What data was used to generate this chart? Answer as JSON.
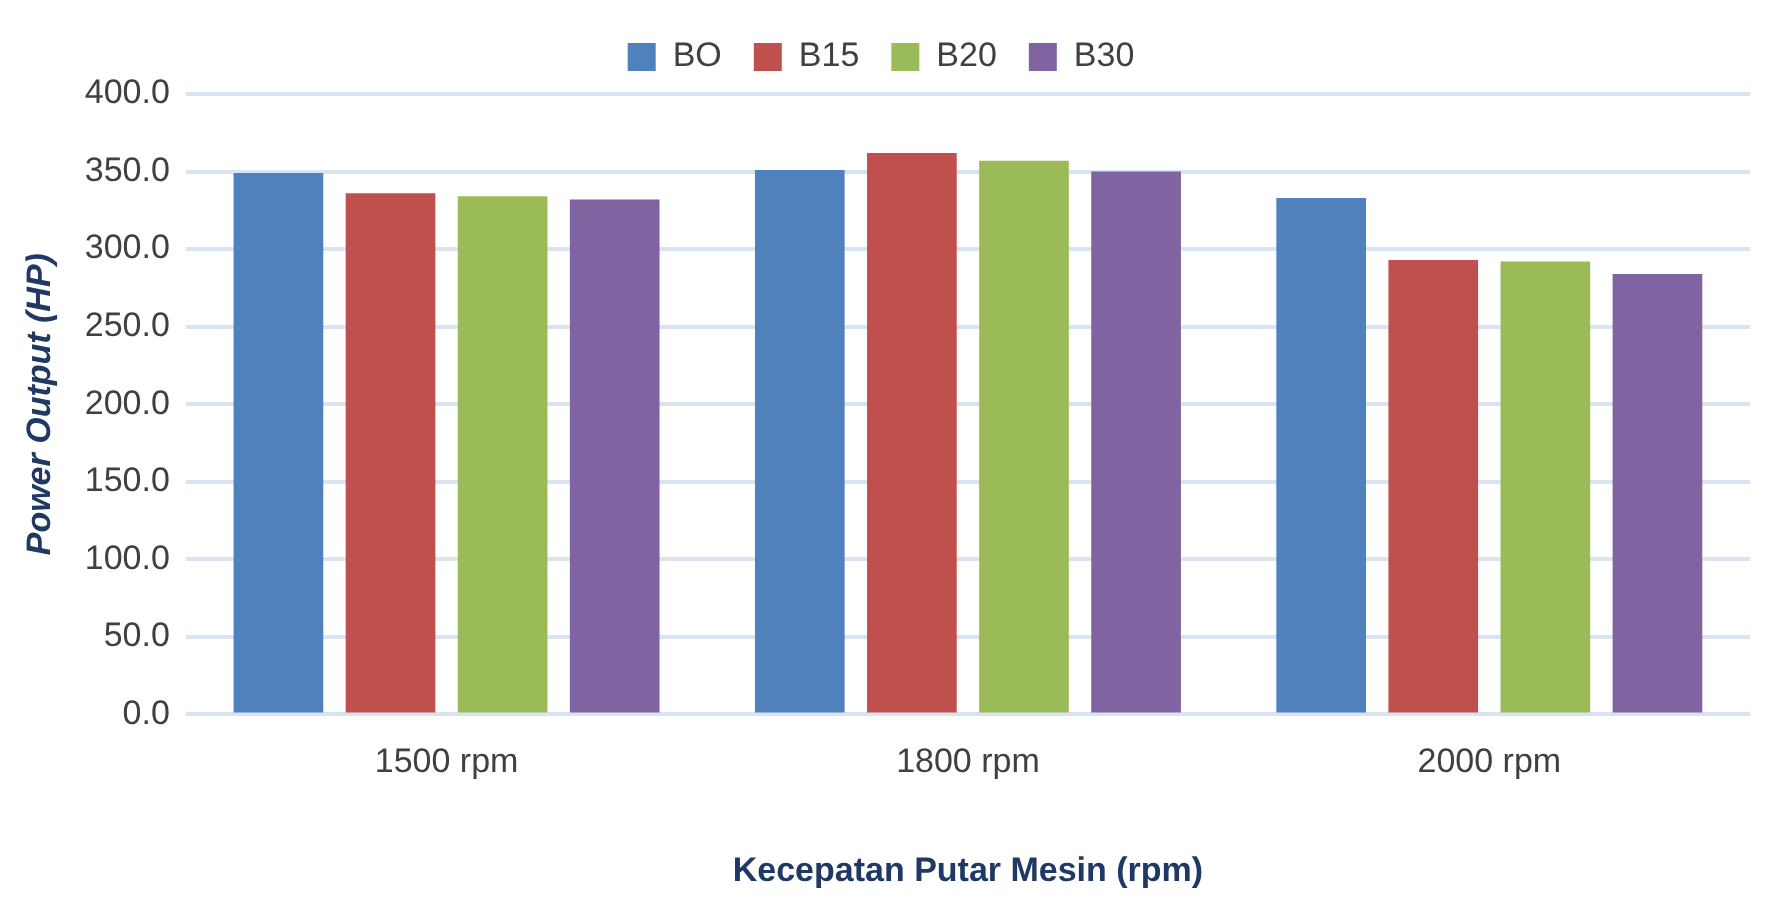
{
  "chart_data": {
    "type": "bar",
    "xlabel": "Kecepatan Putar Mesin (rpm)",
    "ylabel": "Power Output (HP)",
    "categories": [
      "1500 rpm",
      "1800 rpm",
      "2000 rpm"
    ],
    "series": [
      {
        "name": "BO",
        "color": "#4f81bd",
        "values": [
          349,
          351,
          333
        ]
      },
      {
        "name": "B15",
        "color": "#c0504d",
        "values": [
          336,
          362,
          293
        ]
      },
      {
        "name": "B20",
        "color": "#9bbb59",
        "values": [
          334,
          357,
          292
        ]
      },
      {
        "name": "B30",
        "color": "#8064a2",
        "values": [
          332,
          350,
          284
        ]
      }
    ],
    "ylim": [
      0,
      400
    ],
    "yticks": [
      {
        "value": 0,
        "label": "0.0"
      },
      {
        "value": 50,
        "label": "50.0"
      },
      {
        "value": 100,
        "label": "100.0"
      },
      {
        "value": 150,
        "label": "150.0"
      },
      {
        "value": 200,
        "label": "200.0"
      },
      {
        "value": 250,
        "label": "250.0"
      },
      {
        "value": 300,
        "label": "300.0"
      },
      {
        "value": 350,
        "label": "350.0"
      },
      {
        "value": 400,
        "label": "400.0"
      }
    ],
    "grid": "y",
    "legend": "top"
  }
}
